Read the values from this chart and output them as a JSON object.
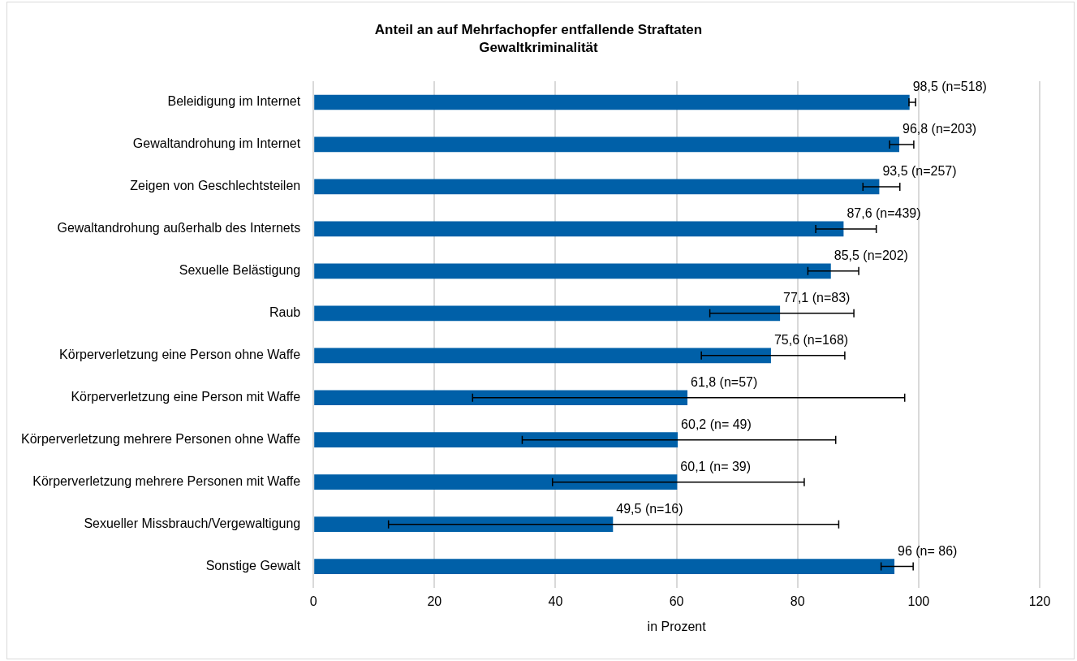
{
  "chart_data": {
    "type": "bar",
    "orientation": "horizontal",
    "title": "Anteil an auf Mehrfachopfer entfallende Straftaten",
    "subtitle": "Gewaltkriminalität",
    "xlabel": "in Prozent",
    "categories": [
      "Beleidigung im Internet",
      "Gewaltandrohung im Internet",
      "Zeigen von Geschlechtsteilen",
      "Gewaltandrohung außerhalb des Internets",
      "Sexuelle Belästigung",
      "Raub",
      "Körperverletzung eine Person ohne Waffe",
      "Körperverletzung eine Person mit Waffe",
      "Körperverletzung mehrere Personen ohne Waffe",
      "Körperverletzung mehrere Personen mit Waffe",
      "Sexueller Missbrauch/Vergewaltigung",
      "Sonstige Gewalt"
    ],
    "values": [
      98.5,
      96.8,
      93.5,
      87.6,
      85.5,
      77.1,
      75.6,
      61.8,
      60.2,
      60.1,
      49.5,
      96
    ],
    "errors": [
      [
        98.4,
        99.5
      ],
      [
        95.2,
        99.2
      ],
      [
        90.8,
        96.9
      ],
      [
        83.0,
        93.0
      ],
      [
        81.7,
        90.1
      ],
      [
        65.5,
        89.3
      ],
      [
        64.1,
        87.8
      ],
      [
        26.3,
        97.7
      ],
      [
        34.5,
        86.3
      ],
      [
        39.5,
        81.1
      ],
      [
        12.4,
        86.8
      ],
      [
        93.8,
        99.1
      ]
    ],
    "value_labels": [
      "98,5 (n=518)",
      "96,8 (n=203)",
      "93,5 (n=257)",
      "87,6 (n=439)",
      "85,5 (n=202)",
      "77,1 (n=83)",
      "75,6 (n=168)",
      "61,8 (n=57)",
      "60,2 (n= 49)",
      "60,1 (n= 39)",
      "49,5 (n=16)",
      "96 (n= 86)"
    ],
    "color": "#0060a8",
    "xlim": [
      0,
      120
    ],
    "xticks": [
      0,
      20,
      40,
      60,
      80,
      100,
      120
    ],
    "grid": "x",
    "legend": false
  }
}
